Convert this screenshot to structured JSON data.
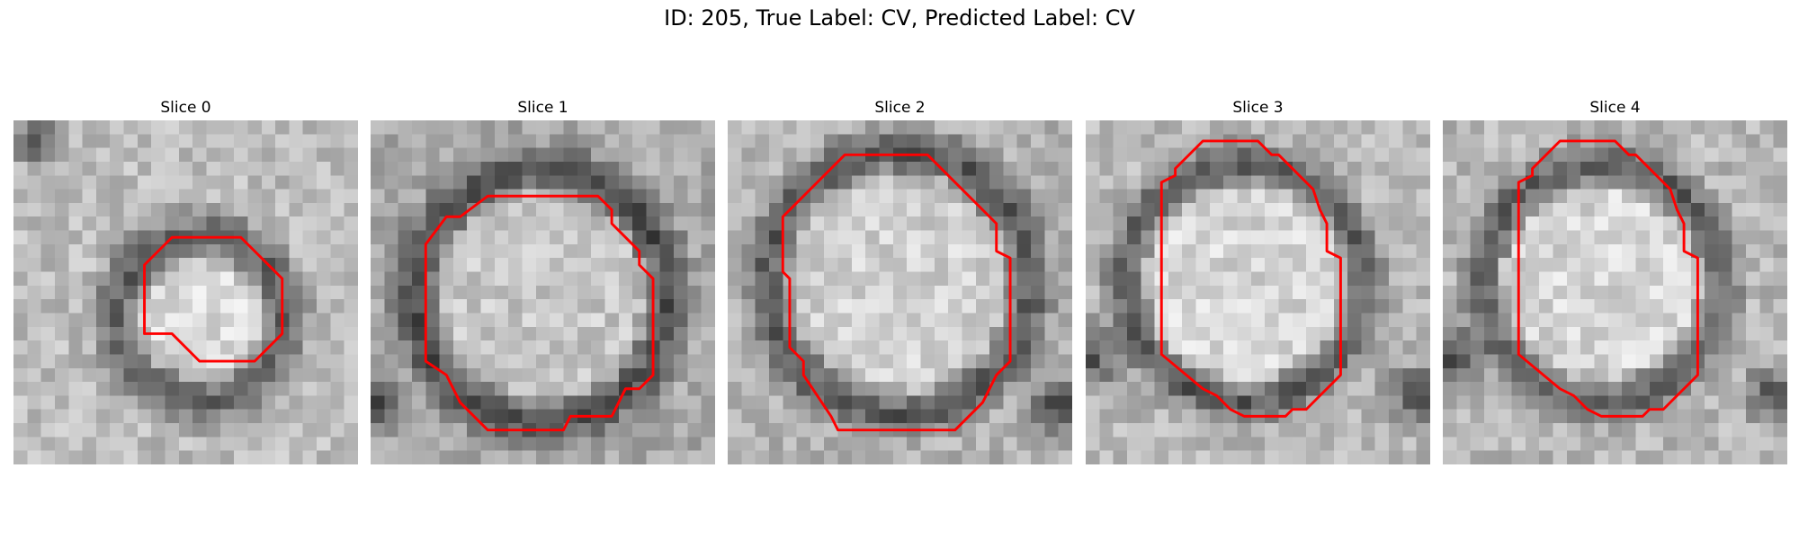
{
  "figure": {
    "title": "ID: 205, True Label: CV, Predicted Label: CV"
  },
  "panels": [
    {
      "title": "Slice 0"
    },
    {
      "title": "Slice 1"
    },
    {
      "title": "Slice 2"
    },
    {
      "title": "Slice 3"
    },
    {
      "title": "Slice 4"
    }
  ],
  "colors": {
    "contour": "#ff0000",
    "background": "#ffffff"
  }
}
